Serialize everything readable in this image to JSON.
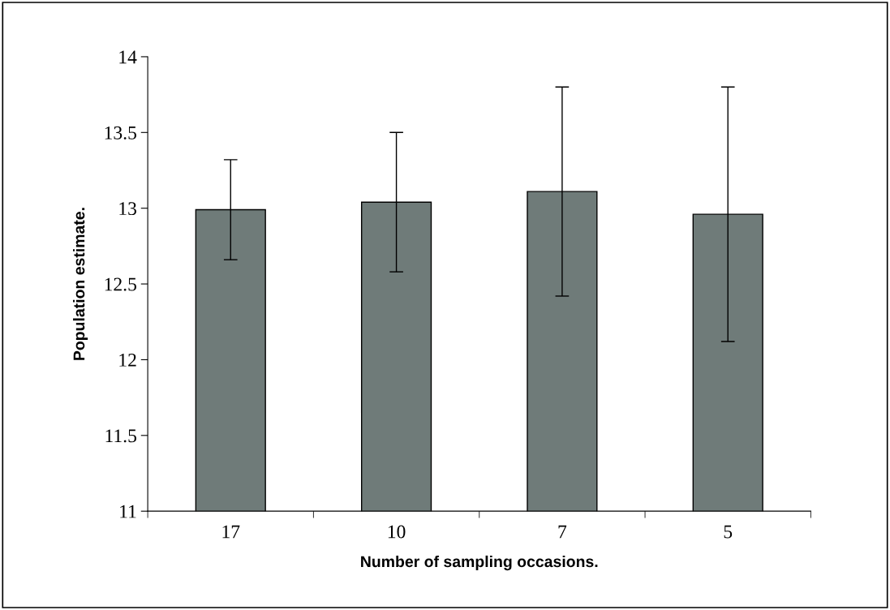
{
  "chart_data": {
    "type": "bar",
    "xlabel": "Number of sampling occasions.",
    "ylabel": "Population estimate.",
    "categories": [
      "17",
      "10",
      "7",
      "5"
    ],
    "values": [
      12.99,
      13.04,
      13.11,
      12.96
    ],
    "errors": [
      0.33,
      0.46,
      0.69,
      0.84
    ],
    "color": "#6f7b79",
    "ylim": [
      11,
      14
    ],
    "yticks": [
      11,
      11.5,
      12,
      12.5,
      13,
      13.5,
      14
    ],
    "grid": false,
    "legend": false
  }
}
